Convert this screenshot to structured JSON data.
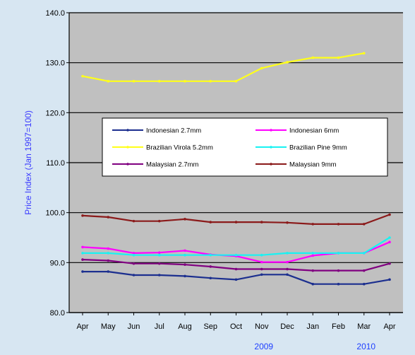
{
  "chart_data": {
    "type": "line",
    "title": "",
    "xlabel": "",
    "ylabel": "Price Index (Jan 1997=100)",
    "ylim": [
      80,
      140
    ],
    "yticks": [
      "80.0",
      "90.0",
      "100.0",
      "110.0",
      "120.0",
      "130.0",
      "140.0"
    ],
    "categories": [
      "Apr",
      "May",
      "Jun",
      "Jul",
      "Aug",
      "Sep",
      "Oct",
      "Nov",
      "Dec",
      "Jan",
      "Feb",
      "Mar",
      "Apr"
    ],
    "year_labels": [
      {
        "label": "2009",
        "at_category": 7
      },
      {
        "label": "2010",
        "at_category": 11
      }
    ],
    "grid": "horizontal",
    "legend_position": "center-inside",
    "colors": {
      "plot_background": "#c0c0c0",
      "page_background": "#d7e6f2",
      "ylabel_color": "#3b3bff",
      "year_label_color": "#1f3fff"
    },
    "series": [
      {
        "name": "Indonesian 2.7mm",
        "color": "#1c2f8f",
        "values": [
          88.2,
          88.2,
          87.5,
          87.5,
          87.3,
          86.9,
          86.6,
          87.6,
          87.6,
          85.7,
          85.7,
          85.7,
          86.6
        ]
      },
      {
        "name": "Indonesian 6mm",
        "color": "#ff00ff",
        "values": [
          93.1,
          92.8,
          91.9,
          92.0,
          92.4,
          91.6,
          91.3,
          90.1,
          90.1,
          91.4,
          91.9,
          91.9,
          94.1
        ]
      },
      {
        "name": "Brazilian Virola 5.2mm",
        "color": "#ffff1a",
        "values": [
          127.3,
          126.3,
          126.3,
          126.3,
          126.3,
          126.3,
          126.3,
          128.9,
          130.1,
          131.0,
          131.0,
          131.9,
          null
        ]
      },
      {
        "name": "Brazilian Pine 9mm",
        "color": "#19f2f2",
        "values": [
          91.9,
          91.9,
          91.5,
          91.5,
          91.5,
          91.5,
          91.5,
          91.5,
          91.9,
          91.9,
          91.9,
          91.9,
          95.0
        ]
      },
      {
        "name": "Malaysian 2.7mm",
        "color": "#800080",
        "values": [
          90.6,
          90.4,
          89.8,
          89.8,
          89.6,
          89.2,
          88.7,
          88.7,
          88.7,
          88.4,
          88.4,
          88.4,
          89.8
        ]
      },
      {
        "name": "Malaysian 9mm",
        "color": "#8b1a1a",
        "values": [
          99.4,
          99.1,
          98.3,
          98.3,
          98.7,
          98.1,
          98.1,
          98.1,
          98.0,
          97.7,
          97.7,
          97.7,
          99.6
        ]
      }
    ]
  }
}
